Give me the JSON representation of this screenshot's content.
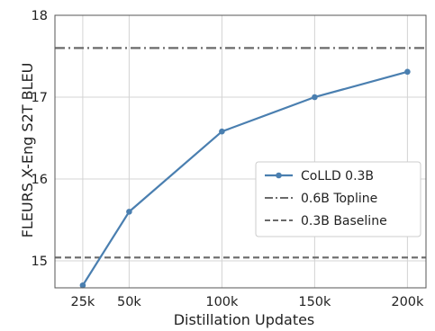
{
  "chart_data": {
    "type": "line",
    "xlabel": "Distillation Updates",
    "ylabel": "FLEURS X-Eng S2T BLEU",
    "x": [
      25000,
      50000,
      100000,
      150000,
      200000
    ],
    "x_tick_labels": [
      "25k",
      "50k",
      "100k",
      "150k",
      "200k"
    ],
    "xlim": [
      10000,
      210000
    ],
    "ylim": [
      14.67,
      18.0
    ],
    "y_ticks": [
      15,
      16,
      17,
      18
    ],
    "y_tick_labels": [
      "15",
      "16",
      "17",
      "18"
    ],
    "grid": true,
    "legend_placement": "center-right",
    "series": [
      {
        "name": "CoLLD 0.3B",
        "style": "solid-marker",
        "color": "#4a7fb0",
        "values": [
          14.7,
          15.6,
          16.58,
          17.0,
          17.31
        ]
      }
    ],
    "reference_lines": [
      {
        "name": "0.6B Topline",
        "style": "dashdot",
        "color": "#6a6a6a",
        "value": 17.6
      },
      {
        "name": "0.3B Baseline",
        "style": "dashed",
        "color": "#6a6a6a",
        "value": 15.04
      }
    ]
  }
}
